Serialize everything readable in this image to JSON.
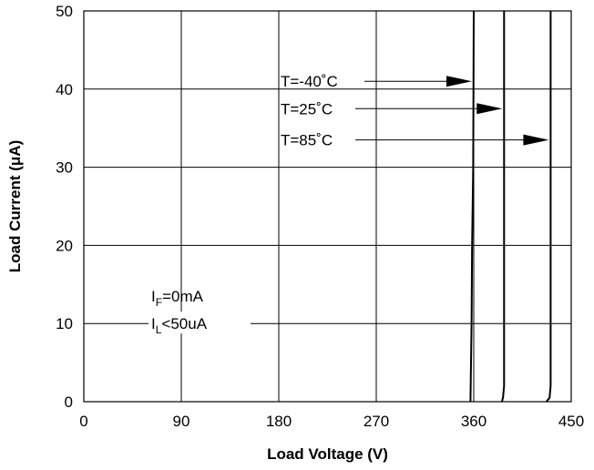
{
  "chart_data": {
    "type": "line",
    "title": "",
    "xlabel": "Load Voltage (V)",
    "ylabel": "Load Current (μA)",
    "xlim": [
      0,
      450
    ],
    "ylim": [
      0,
      50
    ],
    "xticks": [
      "0",
      "90",
      "180",
      "270",
      "360",
      "450"
    ],
    "yticks": [
      "0",
      "10",
      "20",
      "30",
      "40",
      "50"
    ],
    "grid": true,
    "legend": "none",
    "series": [
      {
        "name": "T=-40˚C",
        "x": [
          357,
          358,
          358.5,
          359.5,
          360
        ],
        "y": [
          0,
          10,
          20,
          30,
          50
        ]
      },
      {
        "name": "T=25˚C",
        "x": [
          386,
          387,
          388,
          388
        ],
        "y": [
          0,
          0.5,
          2,
          50
        ]
      },
      {
        "name": "T=85˚C",
        "x": [
          427,
          430,
          431,
          431
        ],
        "y": [
          0,
          0.5,
          2,
          50
        ]
      }
    ],
    "annotations": {
      "conditions": [
        {
          "main": "I",
          "sub": "F",
          "rest": "=0mA"
        },
        {
          "main": "I",
          "sub": "L",
          "rest": "<50uA"
        }
      ]
    }
  }
}
